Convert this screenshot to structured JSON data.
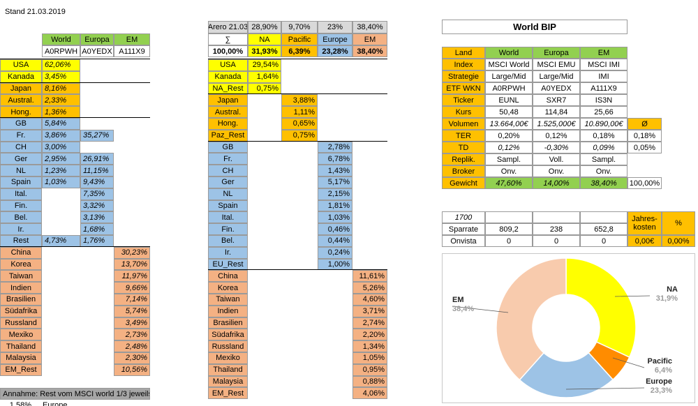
{
  "stand": "Stand 21.03.2019",
  "left": {
    "headers": [
      "World",
      "Europa",
      "EM"
    ],
    "codes": [
      "A0RPWH",
      "A0YEDX",
      "A111X9"
    ],
    "groups": [
      [
        {
          "label": "USA",
          "cells": [
            "62,06%",
            null,
            null
          ]
        },
        {
          "label": "Kanada",
          "cells": [
            "3,45%",
            null,
            null
          ]
        }
      ],
      [
        {
          "label": "Japan",
          "cells": [
            "8,16%",
            null,
            null
          ]
        },
        {
          "label": "Austral.",
          "cells": [
            "2,33%",
            null,
            null
          ]
        },
        {
          "label": "Hong.",
          "cells": [
            "1,36%",
            null,
            null
          ]
        }
      ],
      [
        {
          "label": "GB",
          "cells": [
            "5,84%",
            null,
            null
          ]
        },
        {
          "label": "Fr.",
          "cells": [
            "3,86%",
            "35,27%",
            null
          ]
        },
        {
          "label": "CH",
          "cells": [
            "3,00%",
            null,
            null
          ]
        },
        {
          "label": "Ger",
          "cells": [
            "2,95%",
            "26,91%",
            null
          ]
        },
        {
          "label": "NL",
          "cells": [
            "1,23%",
            "11,15%",
            null
          ]
        },
        {
          "label": "Spain",
          "cells": [
            "1,03%",
            "9,43%",
            null
          ]
        },
        {
          "label": "Ital.",
          "cells": [
            null,
            "7,35%",
            null
          ]
        },
        {
          "label": "Fin.",
          "cells": [
            null,
            "3,32%",
            null
          ]
        },
        {
          "label": "Bel.",
          "cells": [
            null,
            "3,13%",
            null
          ]
        },
        {
          "label": "Ir.",
          "cells": [
            null,
            "1,68%",
            null
          ]
        },
        {
          "label": "Rest",
          "cells": [
            "4,73%",
            "1,76%",
            null
          ]
        }
      ],
      [
        {
          "label": "China",
          "cells": [
            null,
            null,
            "30,23%"
          ]
        },
        {
          "label": "Korea",
          "cells": [
            null,
            null,
            "13,70%"
          ]
        },
        {
          "label": "Taiwan",
          "cells": [
            null,
            null,
            "11,97%"
          ]
        },
        {
          "label": "Indien",
          "cells": [
            null,
            null,
            "9,66%"
          ]
        },
        {
          "label": "Brasilien",
          "cells": [
            null,
            null,
            "7,14%"
          ]
        },
        {
          "label": "Südafrika",
          "cells": [
            null,
            null,
            "5,74%"
          ]
        },
        {
          "label": "Russland",
          "cells": [
            null,
            null,
            "3,49%"
          ]
        },
        {
          "label": "Mexiko",
          "cells": [
            null,
            null,
            "2,73%"
          ]
        },
        {
          "label": "Thailand",
          "cells": [
            null,
            null,
            "2,48%"
          ]
        },
        {
          "label": "Malaysia",
          "cells": [
            null,
            null,
            "2,30%"
          ]
        },
        {
          "label": "EM_Rest",
          "cells": [
            null,
            null,
            "10,56%"
          ]
        }
      ]
    ],
    "note": "Annahme: Rest vom MSCI world 1/3 jeweils",
    "bottom": [
      "1,58%",
      "Europe"
    ]
  },
  "middle": {
    "header": [
      "Arero 21.03",
      "28,90%",
      "9,70%",
      "23%",
      "38,40%"
    ],
    "names": [
      "∑",
      "NA",
      "Pacific",
      "Europe",
      "EM"
    ],
    "totals": [
      "100,00%",
      "31,93%",
      "6,39%",
      "23,28%",
      "38,40%"
    ],
    "groups": [
      [
        {
          "label": "USA",
          "value": "29,54%"
        },
        {
          "label": "Kanada",
          "value": "1,64%"
        },
        {
          "label": "NA_Rest",
          "value": "0,75%"
        }
      ],
      [
        {
          "label": "Japan",
          "value": "3,88%"
        },
        {
          "label": "Austral.",
          "value": "1,11%"
        },
        {
          "label": "Hong.",
          "value": "0,65%"
        },
        {
          "label": "Paz_Rest",
          "value": "0,75%"
        }
      ],
      [
        {
          "label": "GB",
          "value": "2,78%"
        },
        {
          "label": "Fr.",
          "value": "6,78%"
        },
        {
          "label": "CH",
          "value": "1,43%"
        },
        {
          "label": "Ger",
          "value": "5,17%"
        },
        {
          "label": "NL",
          "value": "2,15%"
        },
        {
          "label": "Spain",
          "value": "1,81%"
        },
        {
          "label": "Ital.",
          "value": "1,03%"
        },
        {
          "label": "Fin.",
          "value": "0,46%"
        },
        {
          "label": "Bel.",
          "value": "0,44%"
        },
        {
          "label": "Ir.",
          "value": "0,24%"
        },
        {
          "label": "EU_Rest",
          "value": "1,00%"
        }
      ],
      [
        {
          "label": "China",
          "value": "11,61%"
        },
        {
          "label": "Korea",
          "value": "5,26%"
        },
        {
          "label": "Taiwan",
          "value": "4,60%"
        },
        {
          "label": "Indien",
          "value": "3,71%"
        },
        {
          "label": "Brasilien",
          "value": "2,74%"
        },
        {
          "label": "Südafrika",
          "value": "2,20%"
        },
        {
          "label": "Russland",
          "value": "1,34%"
        },
        {
          "label": "Mexiko",
          "value": "1,05%"
        },
        {
          "label": "Thailand",
          "value": "0,95%"
        },
        {
          "label": "Malaysia",
          "value": "0,88%"
        },
        {
          "label": "EM_Rest",
          "value": "4,06%"
        }
      ]
    ]
  },
  "right": {
    "title": "World BIP",
    "rows": [
      [
        "Land",
        "World",
        "Europa",
        "EM",
        null
      ],
      [
        "Index",
        "MSCI World",
        "MSCI EMU",
        "MSCI IMI",
        null
      ],
      [
        "Strategie",
        "Large/Mid",
        "Large/Mid",
        "IMI",
        null
      ],
      [
        "ETF WKN",
        "A0RPWH",
        "A0YEDX",
        "A111X9",
        null
      ],
      [
        "Ticker",
        "EUNL",
        "SXR7",
        "IS3N",
        null
      ],
      [
        "Kurs",
        "50,48",
        "114,84",
        "25,66",
        null
      ],
      [
        "Volumen",
        "13.664,00€",
        "1.525,000€",
        "10.890,00€",
        "Ø"
      ],
      [
        "TER",
        "0,20%",
        "0,12%",
        "0,18%",
        "0,18%"
      ],
      [
        "TD",
        "0,12%",
        "-0,30%",
        "0,09%",
        "0,05%"
      ],
      [
        "Replik.",
        "Sampl.",
        "Voll.",
        "Sampl.",
        null
      ],
      [
        "Broker",
        "Onv.",
        "Onv.",
        "Onv.",
        null
      ],
      [
        "Gewicht",
        "47,60%",
        "14,00%",
        "38,40%",
        "100,00%"
      ]
    ],
    "savings": [
      [
        "1700",
        null,
        null,
        null
      ],
      [
        "Sparrate",
        "809,2",
        "238",
        "652,8"
      ],
      [
        "Onvista",
        "0",
        "0",
        "0"
      ]
    ],
    "costs": {
      "headers": [
        "Jahres-kosten",
        "%"
      ],
      "values": [
        "0,00€",
        "0,00%"
      ]
    }
  },
  "chart_data": {
    "type": "donut",
    "categories": [
      "NA",
      "Pacific",
      "Europe",
      "EM"
    ],
    "values": [
      31.9,
      6.4,
      23.3,
      38.4
    ],
    "value_labels": [
      "31,9%",
      "6,4%",
      "23,3%",
      "38,4%"
    ],
    "colors": [
      "#ffff00",
      "#ff8c00",
      "#9dc3e6",
      "#f8cbad"
    ]
  }
}
